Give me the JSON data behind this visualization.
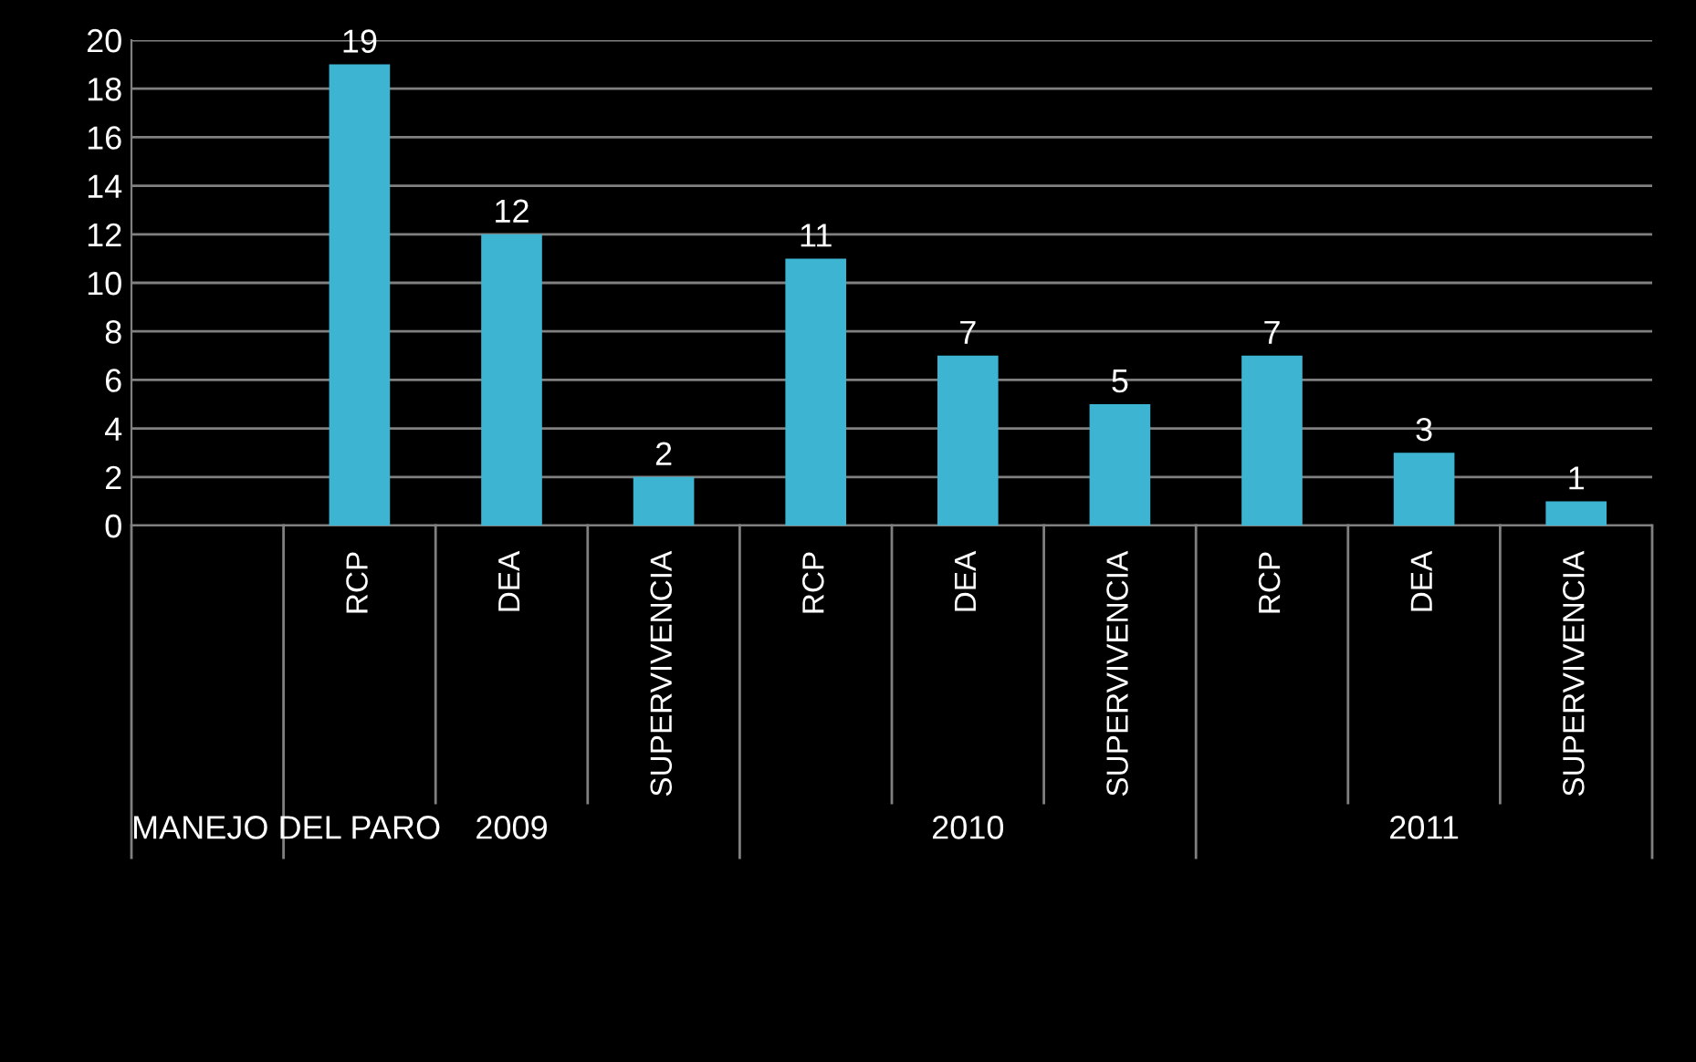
{
  "chart_data": {
    "type": "bar",
    "categories": [
      null,
      "RCP",
      "DEA",
      "SUPERVIVENCIA",
      "RCP",
      "DEA",
      "SUPERVIVENCIA",
      "RCP",
      "DEA",
      "SUPERVIVENCIA"
    ],
    "values": [
      null,
      19,
      12,
      2,
      11,
      7,
      5,
      7,
      3,
      1
    ],
    "color": "#3cb4d2",
    "ylim": [
      0,
      20
    ],
    "yticks": [
      0,
      2,
      4,
      6,
      8,
      10,
      12,
      14,
      16,
      18,
      20
    ],
    "grid": "y",
    "data_labels": true,
    "annotations": [
      "MANEJO DEL PARO",
      "2009",
      "2010",
      "2011"
    ]
  }
}
